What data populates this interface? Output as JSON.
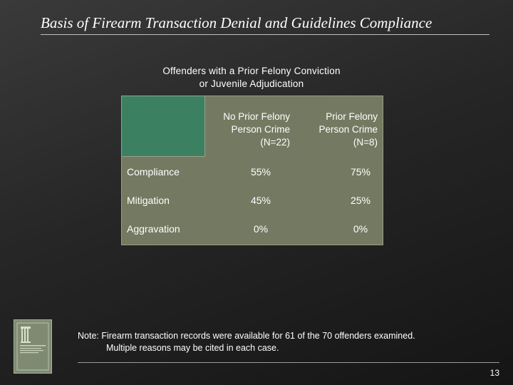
{
  "slide": {
    "title": "Basis of Firearm Transaction Denial and Guidelines Compliance",
    "page_number": "13"
  },
  "table": {
    "caption_lines": [
      "Offenders with a Prior Felony Conviction",
      "or Juvenile Adjudication"
    ],
    "columns": [
      {
        "lines": [
          "No Prior Felony",
          "Person Crime",
          "(N=22)"
        ]
      },
      {
        "lines": [
          "Prior Felony",
          "Person Crime",
          "(N=8)"
        ]
      }
    ],
    "rows": [
      {
        "label": "Compliance",
        "values": [
          "55%",
          "75%"
        ]
      },
      {
        "label": "Mitigation",
        "values": [
          "45%",
          "25%"
        ]
      },
      {
        "label": "Aggravation",
        "values": [
          "0%",
          "0%"
        ]
      }
    ]
  },
  "note": {
    "line1": "Note:  Firearm transaction records were available for 61 of the 70 offenders examined.",
    "line2": "Multiple reasons may be cited in each case."
  },
  "colors": {
    "background": "#262626",
    "table_fill": "#737a61",
    "header_corner": "#3c8062",
    "logo_fill": "#7f8a72"
  }
}
